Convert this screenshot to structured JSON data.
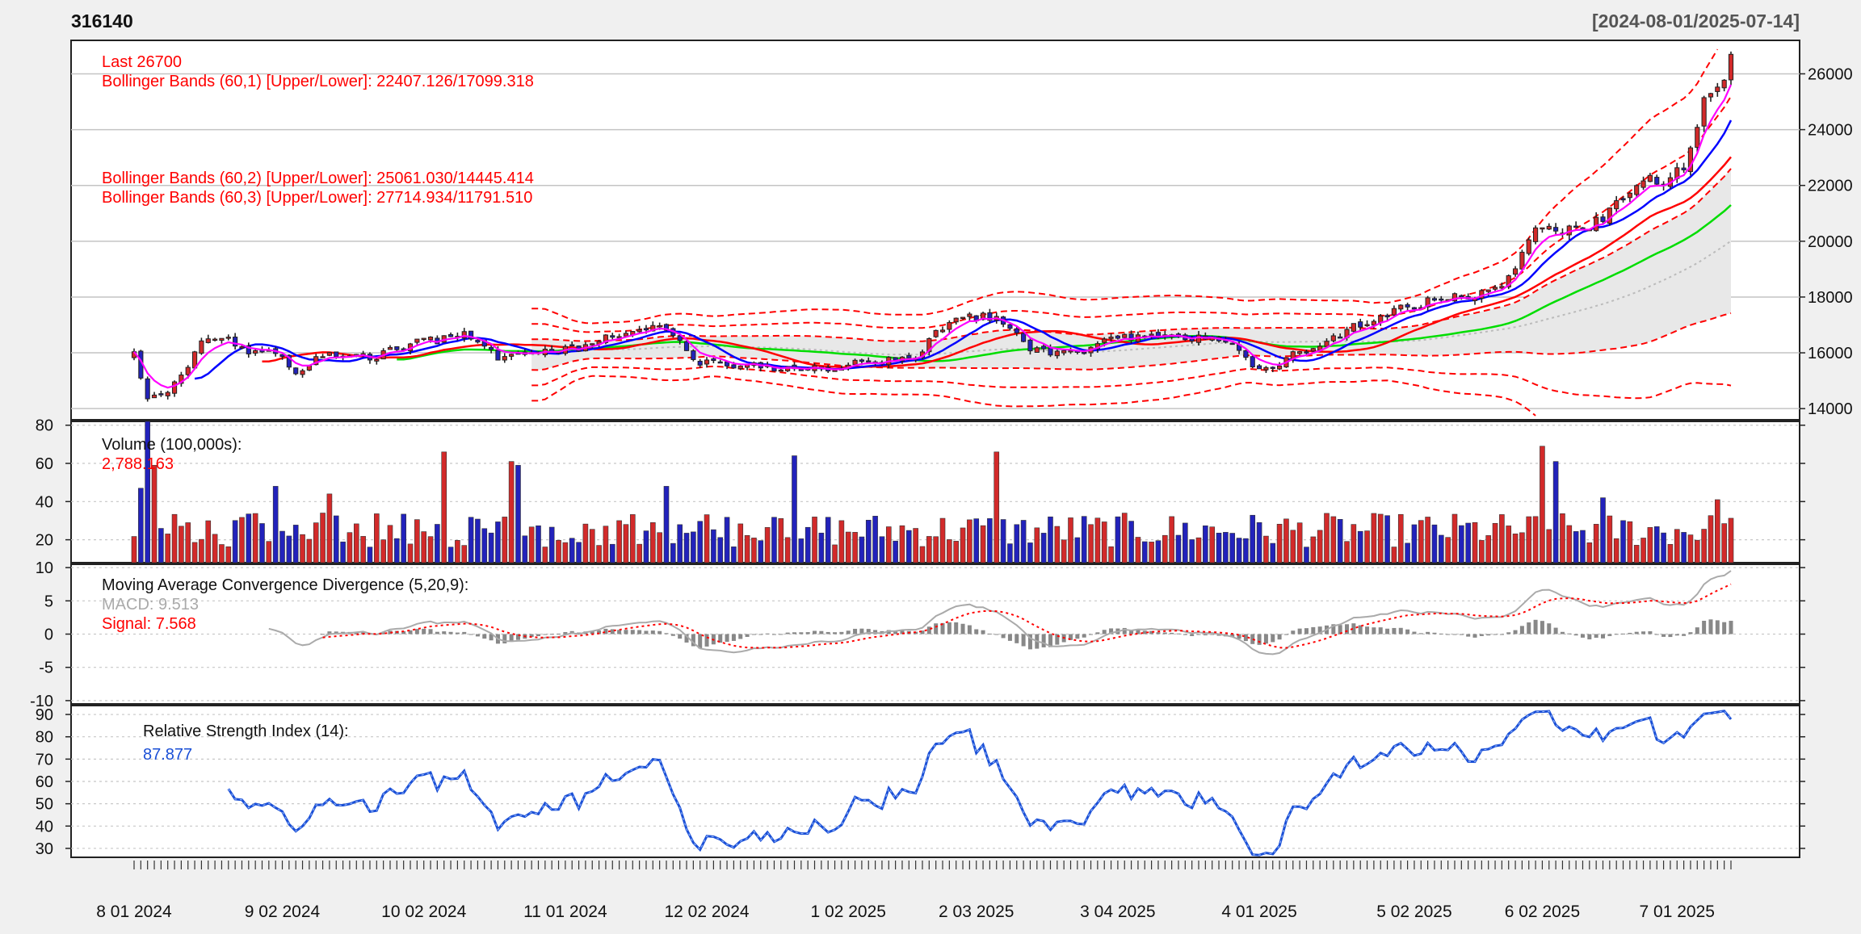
{
  "header": {
    "symbol": "316140",
    "date_range": "[2024-08-01/2025-07-14]"
  },
  "colors": {
    "background": "#f0f0f0",
    "panel_bg": "#ffffff",
    "up": "#d22a2a",
    "down": "#2222bb",
    "label_red": "#ff0000",
    "grid": "#bbbbbb",
    "ma_magenta": "#ff00ff",
    "ma_blue": "#0000ff",
    "ma_red": "#ff0000",
    "ma_green": "#00dd00",
    "band_fill": "#e8e8e8",
    "macd_line": "#aaaaaa",
    "macd_hist": "#888888",
    "rsi_line": "#1a4fd6"
  },
  "chart_data": [
    {
      "type": "candlestick",
      "panel": "price",
      "ylim": [
        13600,
        27200
      ],
      "yticks": [
        14000,
        16000,
        18000,
        20000,
        22000,
        24000,
        26000
      ],
      "ytick_labels": [
        "14000",
        "16000",
        "18000",
        "20000",
        "22000",
        "24000",
        "26000"
      ],
      "legend": [
        "Last 26700",
        "Bollinger Bands (60,1) [Upper/Lower]: 22407.126/17099.318",
        "Bollinger Bands (60,2) [Upper/Lower]: 25061.030/14445.414",
        "Bollinger Bands (60,3) [Upper/Lower]: 27714.934/11791.510"
      ],
      "grid": true,
      "close_keypoints": [
        [
          0,
          16000
        ],
        [
          3,
          14400
        ],
        [
          8,
          14600
        ],
        [
          12,
          15000
        ],
        [
          18,
          16400
        ],
        [
          24,
          16600
        ],
        [
          28,
          16100
        ],
        [
          33,
          16100
        ],
        [
          38,
          16000
        ],
        [
          42,
          15200
        ],
        [
          48,
          15800
        ],
        [
          52,
          15900
        ],
        [
          58,
          15900
        ],
        [
          62,
          15800
        ],
        [
          68,
          16100
        ],
        [
          75,
          16400
        ],
        [
          82,
          16500
        ],
        [
          88,
          16700
        ],
        [
          92,
          16400
        ],
        [
          96,
          15800
        ],
        [
          102,
          16000
        ],
        [
          108,
          16100
        ],
        [
          114,
          16200
        ],
        [
          118,
          16100
        ],
        [
          124,
          16500
        ],
        [
          130,
          16800
        ],
        [
          136,
          17000
        ],
        [
          140,
          16900
        ],
        [
          144,
          16300
        ],
        [
          148,
          15700
        ],
        [
          154,
          15600
        ],
        [
          160,
          15500
        ],
        [
          166,
          15500
        ],
        [
          172,
          15400
        ],
        [
          178,
          15400
        ],
        [
          184,
          15500
        ],
        [
          190,
          15600
        ],
        [
          196,
          15700
        ],
        [
          202,
          15800
        ],
        [
          206,
          15800
        ],
        [
          210,
          16500
        ],
        [
          214,
          17000
        ],
        [
          220,
          17300
        ],
        [
          226,
          17300
        ],
        [
          232,
          16800
        ],
        [
          236,
          16200
        ],
        [
          242,
          16000
        ],
        [
          248,
          16000
        ],
        [
          252,
          16200
        ],
        [
          258,
          16500
        ],
        [
          264,
          16600
        ],
        [
          270,
          16700
        ],
        [
          276,
          16500
        ],
        [
          282,
          16600
        ],
        [
          288,
          16400
        ],
        [
          292,
          16100
        ],
        [
          296,
          15400
        ],
        [
          300,
          15500
        ],
        [
          304,
          15800
        ],
        [
          310,
          16200
        ],
        [
          316,
          16500
        ],
        [
          322,
          17000
        ],
        [
          328,
          17300
        ],
        [
          334,
          17600
        ],
        [
          340,
          17800
        ],
        [
          346,
          18000
        ],
        [
          352,
          18000
        ],
        [
          356,
          18100
        ],
        [
          360,
          18300
        ],
        [
          364,
          19000
        ],
        [
          368,
          20200
        ],
        [
          372,
          20700
        ],
        [
          376,
          20400
        ],
        [
          380,
          20500
        ],
        [
          384,
          20600
        ],
        [
          388,
          20900
        ],
        [
          392,
          21500
        ],
        [
          396,
          22000
        ],
        [
          400,
          22300
        ],
        [
          404,
          22100
        ],
        [
          407,
          22500
        ],
        [
          410,
          23000
        ],
        [
          413,
          24700
        ],
        [
          416,
          25500
        ],
        [
          419,
          25800
        ],
        [
          421,
          26700
        ]
      ]
    },
    {
      "type": "bar",
      "panel": "volume",
      "ylim": [
        8,
        82
      ],
      "yticks": [
        20,
        40,
        60,
        80
      ],
      "ytick_labels": [
        "20",
        "40",
        "60",
        "80"
      ],
      "legend": [
        "Volume (100,000s):",
        "2,788.163"
      ],
      "spikes": [
        [
          3,
          82,
          "down"
        ],
        [
          2,
          47,
          "down"
        ],
        [
          5,
          59,
          "down"
        ],
        [
          37,
          48,
          "down"
        ],
        [
          52,
          44,
          "down"
        ],
        [
          81,
          66,
          "up"
        ],
        [
          100,
          61,
          "up"
        ],
        [
          102,
          59,
          "down"
        ],
        [
          140,
          48,
          "down"
        ],
        [
          174,
          64,
          "up"
        ],
        [
          228,
          66,
          "up"
        ],
        [
          371,
          69,
          "down"
        ],
        [
          375,
          61,
          "down"
        ],
        [
          388,
          42,
          "up"
        ],
        [
          418,
          41,
          "up"
        ]
      ]
    },
    {
      "type": "line",
      "panel": "macd",
      "ylim": [
        -10.5,
        10.5
      ],
      "yticks": [
        -10,
        -5,
        0,
        5,
        10
      ],
      "ytick_labels": [
        "-10",
        "-5",
        "0",
        "5",
        "10"
      ],
      "legend": [
        "Moving Average Convergence Divergence (5,20,9):",
        "MACD: 9.513",
        "Signal: 7.568"
      ],
      "macd_last": 9.513,
      "signal_last": 7.568
    },
    {
      "type": "line",
      "panel": "rsi",
      "ylim": [
        26,
        94
      ],
      "yticks": [
        30,
        40,
        50,
        60,
        70,
        80,
        90
      ],
      "ytick_labels": [
        "30",
        "40",
        "50",
        "60",
        "70",
        "80",
        "90"
      ],
      "legend": [
        "Relative Strength Index (14):",
        "87.877"
      ],
      "rsi_last": 87.877
    }
  ],
  "x_axis": {
    "labels": [
      "8 01 2024",
      "9 02 2024",
      "10 02 2024",
      "11 01 2024",
      "12 02 2024",
      "1 02 2025",
      "2 03 2025",
      "3 04 2025",
      "4 01 2025",
      "5 02 2025",
      "6 02 2025",
      "7 01 2025"
    ],
    "label_index": [
      0,
      22,
      43,
      64,
      85,
      106,
      125,
      146,
      167,
      190,
      209,
      229
    ],
    "n_points": 238
  }
}
